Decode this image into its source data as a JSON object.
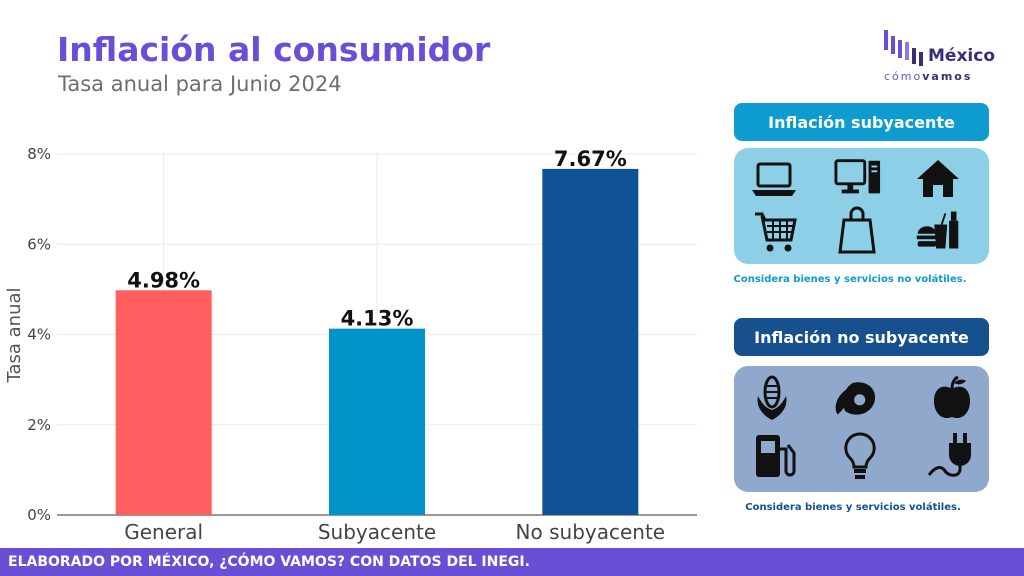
{
  "header": {
    "title": "Inflación al consumidor",
    "subtitle": "Tasa anual para Junio 2024"
  },
  "logo": {
    "word": "México",
    "sub_a": "cómo",
    "sub_b": "vamos"
  },
  "chart_data": {
    "type": "bar",
    "categories": [
      "General",
      "Subyacente",
      "No subyacente"
    ],
    "values": [
      4.98,
      4.13,
      7.67
    ],
    "value_labels": [
      "4.98%",
      "4.13%",
      "7.67%"
    ],
    "colors": [
      "#ff5f5f",
      "#0094c8",
      "#105296"
    ],
    "ylabel": "Tasa anual",
    "xlabel": "",
    "ylim": [
      0,
      8
    ],
    "yticks": [
      "0%",
      "2%",
      "4%",
      "6%",
      "8%"
    ],
    "grid": true
  },
  "panels": {
    "core": {
      "title": "Inflación subyacente",
      "note": "Considera bienes y servicios no volátiles.",
      "accent": "#0e9bd0",
      "box_color": "#8ecfe8",
      "icons": [
        "laptop-icon",
        "desktop-computer-icon",
        "house-icon",
        "shopping-cart-icon",
        "shopping-bag-icon",
        "fast-food-icon"
      ]
    },
    "noncore": {
      "title": "Inflación no subyacente",
      "note": "Considera bienes y servicios volátiles.",
      "accent": "#17508f",
      "box_color": "#90a8cb",
      "icons": [
        "corn-icon",
        "avocado-icon",
        "apple-icon",
        "fuel-pump-icon",
        "light-bulb-icon",
        "power-plug-icon"
      ]
    }
  },
  "footer": {
    "text": "ELABORADO POR MÉXICO, ¿CÓMO VAMOS? CON DATOS DEL INEGI."
  }
}
